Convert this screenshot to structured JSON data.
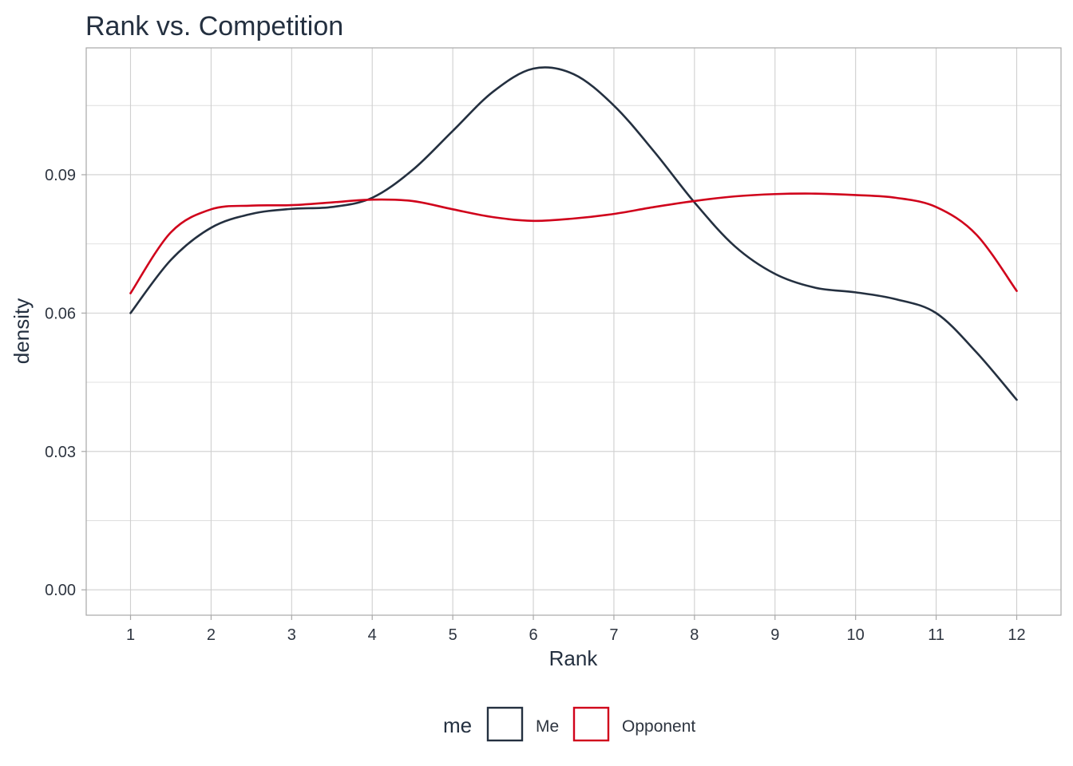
{
  "chart_data": {
    "type": "line",
    "title": "Rank vs. Competition",
    "xlabel": "Rank",
    "ylabel": "density",
    "xlim": [
      0.45,
      12.55
    ],
    "ylim": [
      -0.0055,
      0.1175
    ],
    "x_ticks": [
      1,
      2,
      3,
      4,
      5,
      6,
      7,
      8,
      9,
      10,
      11,
      12
    ],
    "y_ticks": [
      0.0,
      0.03,
      0.06,
      0.09
    ],
    "y_tick_labels": [
      "0.00",
      "0.03",
      "0.06",
      "0.09"
    ],
    "y_minor_ticks": [
      0.015,
      0.045,
      0.075,
      0.105
    ],
    "grid": true,
    "legend": {
      "title": "me",
      "position": "bottom"
    },
    "series": [
      {
        "name": "Me",
        "color": "#243040",
        "x": [
          1,
          1.5,
          2,
          2.5,
          3,
          3.5,
          4,
          4.5,
          5,
          5.5,
          6,
          6.5,
          7,
          7.5,
          8,
          8.5,
          9,
          9.5,
          10,
          10.5,
          11,
          11.5,
          12
        ],
        "values": [
          0.06,
          0.0715,
          0.0785,
          0.0815,
          0.0826,
          0.083,
          0.085,
          0.091,
          0.0995,
          0.108,
          0.113,
          0.1118,
          0.105,
          0.095,
          0.084,
          0.0745,
          0.0685,
          0.0655,
          0.0645,
          0.063,
          0.06,
          0.0515,
          0.0412
        ]
      },
      {
        "name": "Opponent",
        "color": "#d0021b",
        "x": [
          1,
          1.5,
          2,
          2.5,
          3,
          3.5,
          4,
          4.5,
          5,
          5.5,
          6,
          6.5,
          7,
          7.5,
          8,
          8.5,
          9,
          9.5,
          10,
          10.5,
          11,
          11.5,
          12
        ],
        "values": [
          0.0643,
          0.0775,
          0.0825,
          0.0833,
          0.0834,
          0.084,
          0.0846,
          0.0843,
          0.0825,
          0.0808,
          0.08,
          0.0805,
          0.0815,
          0.083,
          0.0843,
          0.0853,
          0.0858,
          0.0859,
          0.0856,
          0.085,
          0.083,
          0.077,
          0.0648
        ]
      }
    ]
  }
}
